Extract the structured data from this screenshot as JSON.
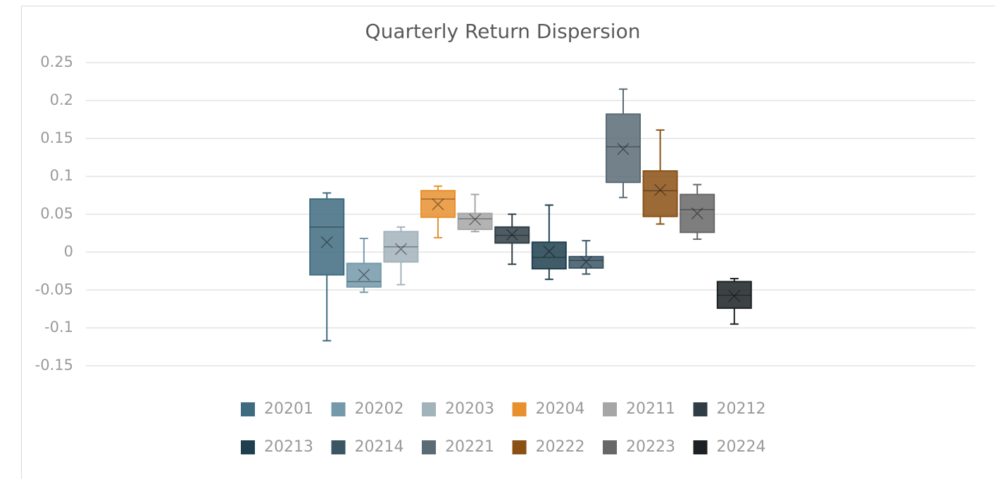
{
  "chart_data": {
    "type": "box",
    "title": "Quarterly Return Dispersion",
    "ylim": [
      -0.15,
      0.25
    ],
    "yticks": [
      -0.15,
      -0.1,
      -0.05,
      0,
      0.05,
      0.1,
      0.15,
      0.2,
      0.25
    ],
    "grid": true,
    "legend": "bottom",
    "series": [
      {
        "name": "20201",
        "color": "#3f6b80",
        "min": -0.117,
        "q1": -0.03,
        "median": 0.033,
        "q3": 0.07,
        "max": 0.078,
        "mean": 0.013
      },
      {
        "name": "20202",
        "color": "#7499aa",
        "min": -0.053,
        "q1": -0.046,
        "median": -0.039,
        "q3": -0.015,
        "max": 0.018,
        "mean": -0.03
      },
      {
        "name": "20203",
        "color": "#a3b3bb",
        "min": -0.043,
        "q1": -0.013,
        "median": 0.007,
        "q3": 0.027,
        "max": 0.033,
        "mean": 0.004
      },
      {
        "name": "20204",
        "color": "#e8902e",
        "min": 0.019,
        "q1": 0.046,
        "median": 0.07,
        "q3": 0.081,
        "max": 0.087,
        "mean": 0.063
      },
      {
        "name": "20211",
        "color": "#a6a6a6",
        "min": 0.027,
        "q1": 0.03,
        "median": 0.044,
        "q3": 0.051,
        "max": 0.076,
        "mean": 0.043
      },
      {
        "name": "20212",
        "color": "#2f3e46",
        "min": -0.016,
        "q1": 0.012,
        "median": 0.022,
        "q3": 0.033,
        "max": 0.05,
        "mean": 0.023
      },
      {
        "name": "20213",
        "color": "#1f3f4f",
        "min": -0.036,
        "q1": -0.022,
        "median": -0.007,
        "q3": 0.013,
        "max": 0.062,
        "mean": 0.001
      },
      {
        "name": "20214",
        "color": "#3a5564",
        "min": -0.029,
        "q1": -0.021,
        "median": -0.011,
        "q3": -0.006,
        "max": 0.015,
        "mean": -0.013
      },
      {
        "name": "20221",
        "color": "#5a6b75",
        "min": 0.072,
        "q1": 0.092,
        "median": 0.139,
        "q3": 0.182,
        "max": 0.215,
        "mean": 0.136
      },
      {
        "name": "20222",
        "color": "#8b5014",
        "min": 0.037,
        "q1": 0.047,
        "median": 0.081,
        "q3": 0.107,
        "max": 0.161,
        "mean": 0.082
      },
      {
        "name": "20223",
        "color": "#676767",
        "min": 0.017,
        "q1": 0.026,
        "median": 0.056,
        "q3": 0.076,
        "max": 0.089,
        "mean": 0.051
      },
      {
        "name": "20224",
        "color": "#1b2124",
        "min": -0.095,
        "q1": -0.074,
        "median": -0.057,
        "q3": -0.039,
        "max": -0.035,
        "mean": -0.058
      }
    ]
  }
}
